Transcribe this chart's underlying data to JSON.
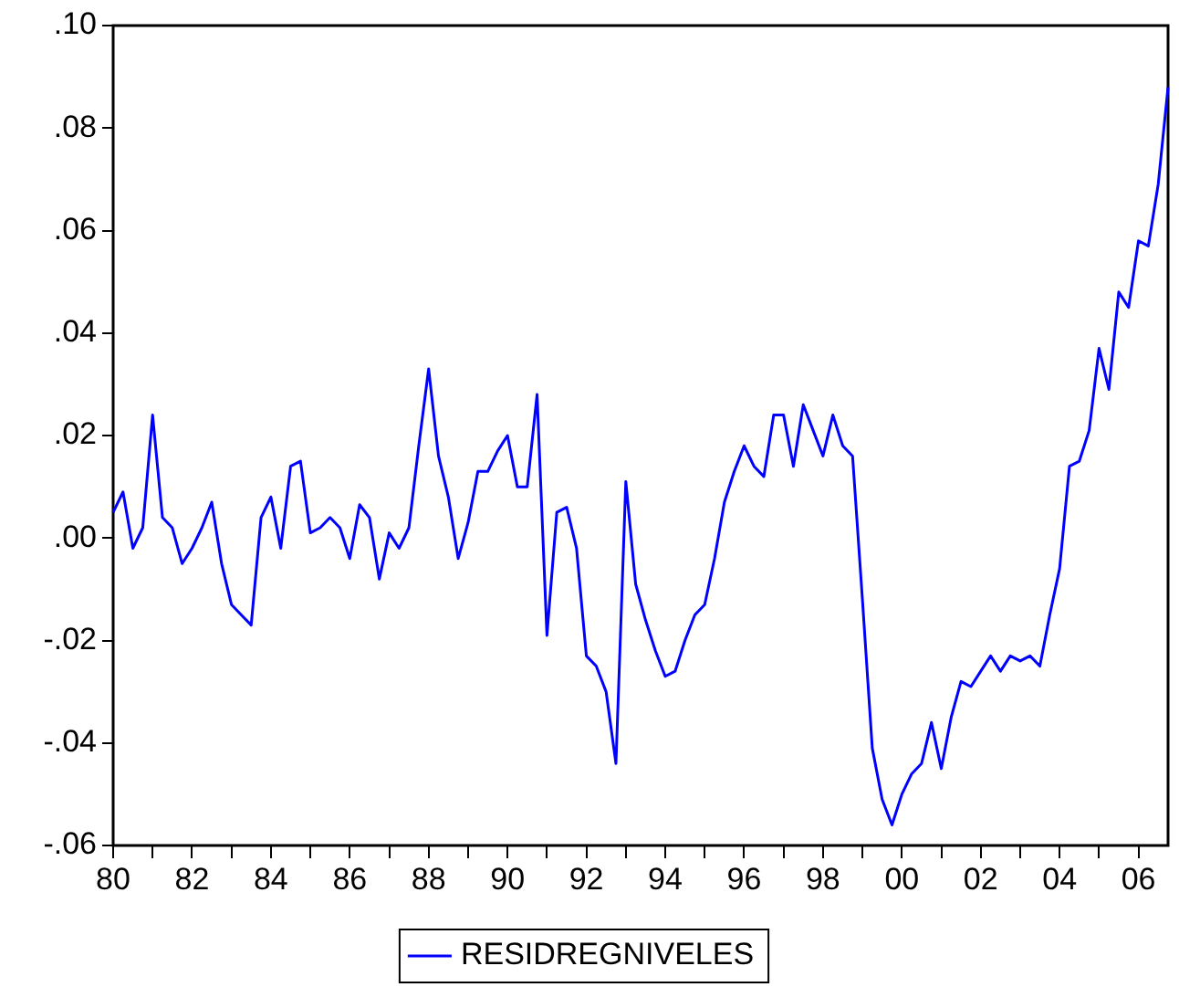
{
  "chart_data": {
    "type": "line",
    "x": [
      1980,
      1980.25,
      1980.5,
      1980.75,
      1981,
      1981.25,
      1981.5,
      1981.75,
      1982,
      1982.25,
      1982.5,
      1982.75,
      1983,
      1983.25,
      1983.5,
      1983.75,
      1984,
      1984.25,
      1984.5,
      1984.75,
      1985,
      1985.25,
      1985.5,
      1985.75,
      1986,
      1986.25,
      1986.5,
      1986.75,
      1987,
      1987.25,
      1987.5,
      1987.75,
      1988,
      1988.25,
      1988.5,
      1988.75,
      1989,
      1989.25,
      1989.5,
      1989.75,
      1990,
      1990.25,
      1990.5,
      1990.75,
      1991,
      1991.25,
      1991.5,
      1991.75,
      1992,
      1992.25,
      1992.5,
      1992.75,
      1993,
      1993.25,
      1993.5,
      1993.75,
      1994,
      1994.25,
      1994.5,
      1994.75,
      1995,
      1995.25,
      1995.5,
      1995.75,
      1996,
      1996.25,
      1996.5,
      1996.75,
      1997,
      1997.25,
      1997.5,
      1997.75,
      1998,
      1998.25,
      1998.5,
      1998.75,
      1999,
      1999.25,
      1999.5,
      1999.75,
      2000,
      2000.25,
      2000.5,
      2000.75,
      2001,
      2001.25,
      2001.5,
      2001.75,
      2002,
      2002.25,
      2002.5,
      2002.75,
      2003,
      2003.25,
      2003.5,
      2003.75,
      2004,
      2004.25,
      2004.5,
      2004.75,
      2005,
      2005.25,
      2005.5,
      2005.75,
      2006,
      2006.25,
      2006.5,
      2006.75
    ],
    "series": [
      {
        "name": "RESIDREGNIVELES",
        "color": "#0000ff",
        "values": [
          0.005,
          0.009,
          -0.002,
          0.002,
          0.024,
          0.004,
          0.002,
          -0.005,
          -0.002,
          0.002,
          0.007,
          -0.005,
          -0.013,
          -0.015,
          -0.017,
          0.004,
          0.008,
          -0.002,
          0.014,
          0.015,
          0.001,
          0.002,
          0.004,
          0.002,
          -0.004,
          0.0065,
          0.004,
          -0.008,
          0.001,
          -0.002,
          0.002,
          0.018,
          0.033,
          0.016,
          0.008,
          -0.004,
          0.003,
          0.013,
          0.013,
          0.017,
          0.02,
          0.01,
          0.01,
          0.028,
          -0.019,
          0.005,
          0.006,
          -0.002,
          -0.023,
          -0.025,
          -0.03,
          -0.044,
          0.011,
          -0.009,
          -0.016,
          -0.022,
          -0.027,
          -0.026,
          -0.02,
          -0.015,
          -0.013,
          -0.004,
          0.007,
          0.013,
          0.018,
          0.014,
          0.012,
          0.024,
          0.024,
          0.014,
          0.026,
          0.021,
          0.016,
          0.024,
          0.018,
          0.016,
          -0.012,
          -0.041,
          -0.051,
          -0.056,
          -0.05,
          -0.046,
          -0.044,
          -0.036,
          -0.045,
          -0.035,
          -0.028,
          -0.029,
          -0.026,
          -0.023,
          -0.026,
          -0.023,
          -0.024,
          -0.023,
          -0.025,
          -0.015,
          -0.006,
          0.014,
          0.015,
          0.021,
          0.037,
          0.029,
          0.048,
          0.045,
          0.058,
          0.057,
          0.069,
          0.088
        ]
      }
    ],
    "xlim": [
      1980,
      2006.75
    ],
    "xticks": [
      {
        "value": 1980,
        "label": "80"
      },
      {
        "value": 1981,
        "label": null
      },
      {
        "value": 1982,
        "label": "82"
      },
      {
        "value": 1983,
        "label": null
      },
      {
        "value": 1984,
        "label": "84"
      },
      {
        "value": 1985,
        "label": null
      },
      {
        "value": 1986,
        "label": "86"
      },
      {
        "value": 1987,
        "label": null
      },
      {
        "value": 1988,
        "label": "88"
      },
      {
        "value": 1989,
        "label": null
      },
      {
        "value": 1990,
        "label": "90"
      },
      {
        "value": 1991,
        "label": null
      },
      {
        "value": 1992,
        "label": "92"
      },
      {
        "value": 1993,
        "label": null
      },
      {
        "value": 1994,
        "label": "94"
      },
      {
        "value": 1995,
        "label": null
      },
      {
        "value": 1996,
        "label": "96"
      },
      {
        "value": 1997,
        "label": null
      },
      {
        "value": 1998,
        "label": "98"
      },
      {
        "value": 1999,
        "label": null
      },
      {
        "value": 2000,
        "label": "00"
      },
      {
        "value": 2001,
        "label": null
      },
      {
        "value": 2002,
        "label": "02"
      },
      {
        "value": 2003,
        "label": null
      },
      {
        "value": 2004,
        "label": "04"
      },
      {
        "value": 2005,
        "label": null
      },
      {
        "value": 2006,
        "label": "06"
      }
    ],
    "ylim": [
      -0.06,
      0.1
    ],
    "yticks": [
      {
        "value": -0.06,
        "label": "-.06"
      },
      {
        "value": -0.04,
        "label": "-.04"
      },
      {
        "value": -0.02,
        "label": "-.02"
      },
      {
        "value": 0,
        "label": ".00"
      },
      {
        "value": 0.02,
        "label": ".02"
      },
      {
        "value": 0.04,
        "label": ".04"
      },
      {
        "value": 0.06,
        "label": ".06"
      },
      {
        "value": 0.08,
        "label": ".08"
      },
      {
        "value": 0.1,
        "label": ".10"
      }
    ],
    "grid": false,
    "legend": "bottom",
    "marker": "none",
    "line_style": "solid"
  }
}
